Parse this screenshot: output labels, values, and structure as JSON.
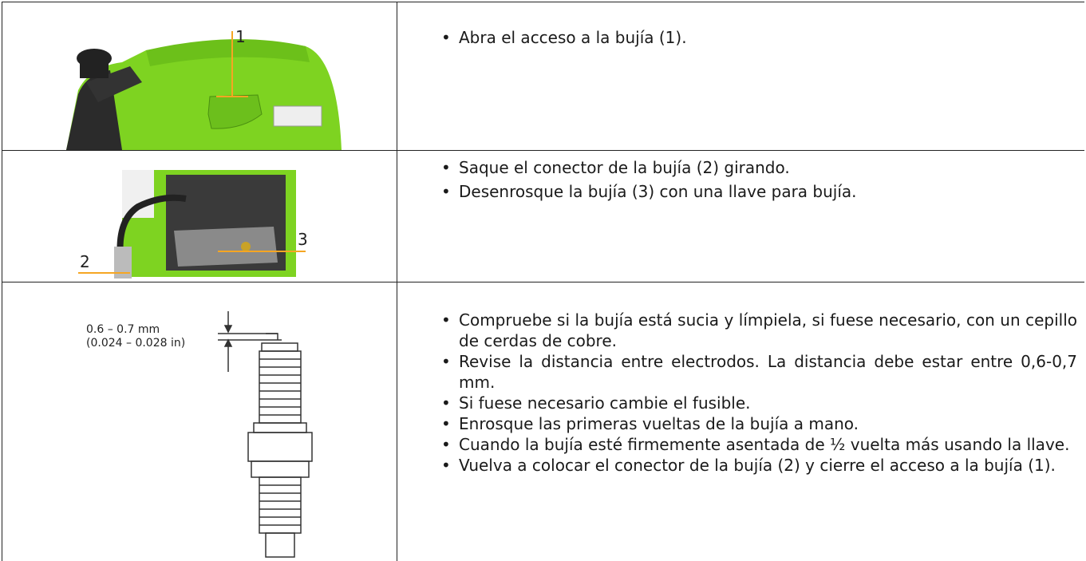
{
  "rows": [
    {
      "image_labels": [
        "1"
      ],
      "items": [
        "Abra el acceso a la bujía (1)."
      ]
    },
    {
      "image_labels": [
        "2",
        "3"
      ],
      "items": [
        "Saque el conector de la bujía (2) girando.",
        "Desenrosque la bujía (3) con una llave para bujía."
      ]
    },
    {
      "image_labels": [
        "0.6 – 0.7 mm",
        "(0.024 – 0.028 in)"
      ],
      "items": [
        "Compruebe si la bujía está sucia y límpiela, si fuese necesario, con un cepillo de cerdas de cobre.",
        "Revise la distancia entre electrodos. La distancia debe estar entre 0,6-0,7 mm.",
        "Si fuese necesario cambie el fusible.",
        "Enrosque las primeras vueltas de la bujía a mano.",
        "Cuando la bujía esté firmemente asentada de ½ vuelta más usando la llave.",
        "Vuelva a colocar el conector de la bujía (2) y cierre el acceso a la bujía (1)."
      ]
    }
  ]
}
